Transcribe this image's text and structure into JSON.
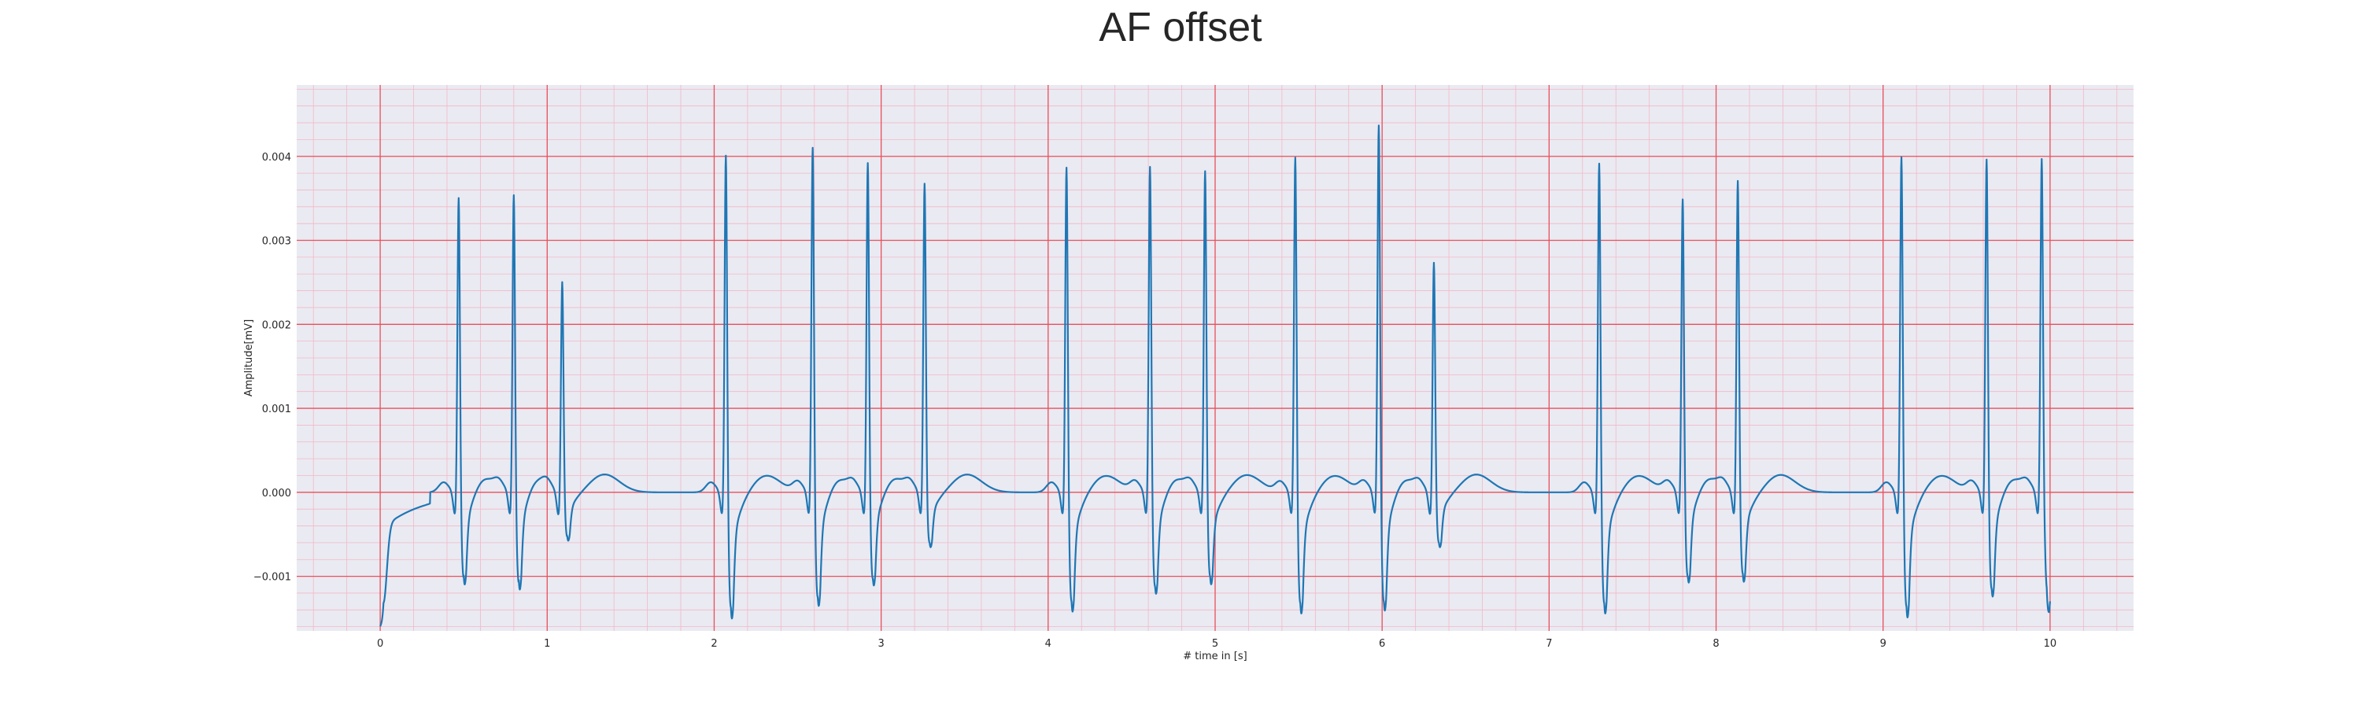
{
  "chart_data": {
    "type": "line",
    "title": "AF offset",
    "xlabel": "# time in [s]",
    "ylabel": "Amplitude[mV]",
    "xlim": [
      -0.5,
      10.5
    ],
    "ylim": [
      -0.00165,
      0.00485
    ],
    "xticks": [
      0,
      1,
      2,
      3,
      4,
      5,
      6,
      7,
      8,
      9,
      10
    ],
    "yticks": [
      -0.001,
      0.0,
      0.001,
      0.002,
      0.003,
      0.004
    ],
    "ytick_labels": [
      "−0.001",
      "0.000",
      "0.001",
      "0.002",
      "0.003",
      "0.004"
    ],
    "grid": "major and minor (ECG paper style)",
    "legend": "none",
    "colors": {
      "background": "#eaeaf2",
      "major_grid": "#e8505b",
      "minor_grid": "#f2b8c6",
      "line": "#1f77b4"
    },
    "beats": [
      {
        "t": 0.47,
        "r": 0.00368,
        "s": -0.00102
      },
      {
        "t": 0.8,
        "r": 0.00372,
        "s": -0.00108
      },
      {
        "t": 1.09,
        "r": 0.00263,
        "s": -0.00053
      },
      {
        "t": 2.07,
        "r": 0.00422,
        "s": -0.00137
      },
      {
        "t": 2.59,
        "r": 0.0043,
        "s": -0.00125
      },
      {
        "t": 2.92,
        "r": 0.0041,
        "s": -0.00103
      },
      {
        "t": 3.26,
        "r": 0.00381,
        "s": -0.0006
      },
      {
        "t": 4.11,
        "r": 0.00407,
        "s": -0.0013
      },
      {
        "t": 4.61,
        "r": 0.00406,
        "s": -0.00112
      },
      {
        "t": 4.94,
        "r": 0.004,
        "s": -0.001
      },
      {
        "t": 5.48,
        "r": 0.00419,
        "s": -0.00132
      },
      {
        "t": 5.98,
        "r": 0.00457,
        "s": -0.0013
      },
      {
        "t": 6.31,
        "r": 0.00287,
        "s": -0.0006
      },
      {
        "t": 7.3,
        "r": 0.00412,
        "s": -0.00132
      },
      {
        "t": 7.8,
        "r": 0.00366,
        "s": -0.001
      },
      {
        "t": 8.13,
        "r": 0.00388,
        "s": -0.00097
      },
      {
        "t": 9.11,
        "r": 0.0042,
        "s": -0.00136
      },
      {
        "t": 9.62,
        "r": 0.00415,
        "s": -0.00115
      },
      {
        "t": 9.95,
        "r": 0.00414,
        "s": -0.00095
      }
    ],
    "series": [
      {
        "x": [
          0.0,
          0.02,
          0.05,
          0.1,
          0.15,
          0.2,
          0.25,
          0.3,
          0.33,
          0.36,
          0.4,
          0.43,
          0.455,
          10.0
        ],
        "y": [
          -0.00068,
          -0.00122,
          -0.00085,
          -0.00065,
          -0.00052,
          -0.0005,
          -0.0001,
          0.00016,
          0.00015,
          0.00013,
          0.00015,
          8e-05,
          0.0001,
          -0.00095
        ]
      }
    ]
  }
}
